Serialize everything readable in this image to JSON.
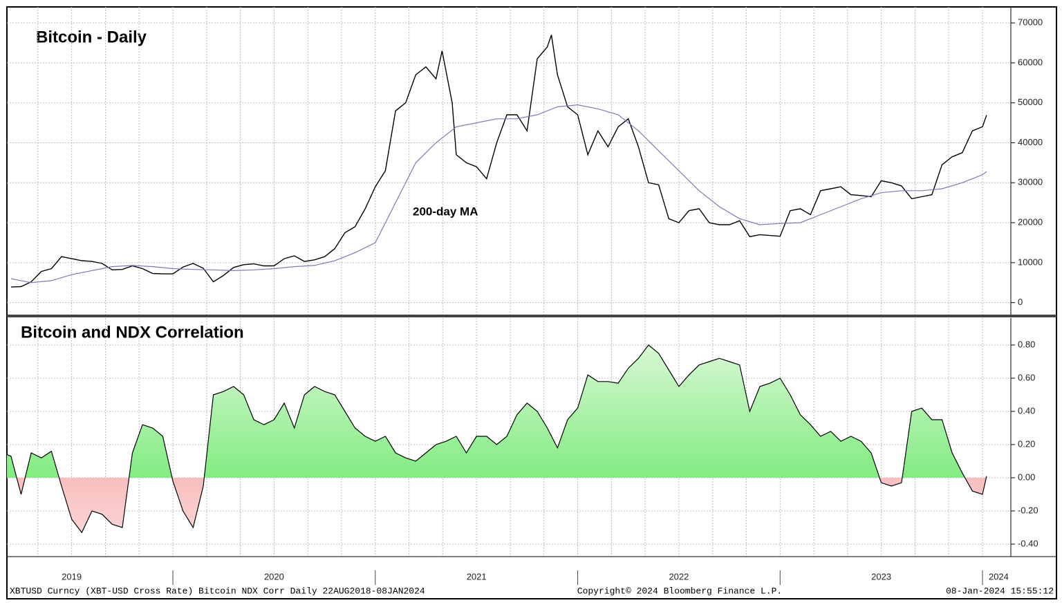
{
  "chart_data": [
    {
      "type": "line",
      "title": "Bitcoin - Daily",
      "annotation": "200-day MA",
      "xlim": [
        2019.18,
        2024.14
      ],
      "ylim": [
        -3000,
        74000
      ],
      "yticks": [
        0,
        10000,
        20000,
        30000,
        40000,
        50000,
        60000,
        70000
      ],
      "grid": true,
      "x_gridlines": [
        2019.333,
        2019.5,
        2019.667,
        2019.833,
        2020,
        2020.167,
        2020.333,
        2020.5,
        2020.667,
        2020.833,
        2021,
        2021.167,
        2021.333,
        2021.5,
        2021.667,
        2021.833,
        2022,
        2022.167,
        2022.333,
        2022.5,
        2022.667,
        2022.833,
        2023,
        2023.167,
        2023.333,
        2023.5,
        2023.667,
        2023.833,
        2024
      ],
      "series": [
        {
          "color": "#000000",
          "x": [
            2019.2,
            2019.25,
            2019.3,
            2019.35,
            2019.4,
            2019.45,
            2019.5,
            2019.55,
            2019.6,
            2019.65,
            2019.7,
            2019.75,
            2019.8,
            2019.85,
            2019.9,
            2019.95,
            2020.0,
            2020.05,
            2020.1,
            2020.15,
            2020.2,
            2020.25,
            2020.3,
            2020.35,
            2020.4,
            2020.45,
            2020.5,
            2020.55,
            2020.6,
            2020.65,
            2020.7,
            2020.75,
            2020.8,
            2020.85,
            2020.9,
            2020.95,
            2021.0,
            2021.05,
            2021.1,
            2021.15,
            2021.2,
            2021.25,
            2021.3,
            2021.33,
            2021.38,
            2021.4,
            2021.45,
            2021.5,
            2021.55,
            2021.6,
            2021.65,
            2021.7,
            2021.75,
            2021.8,
            2021.85,
            2021.87,
            2021.9,
            2021.95,
            2022.0,
            2022.05,
            2022.1,
            2022.15,
            2022.2,
            2022.25,
            2022.3,
            2022.35,
            2022.4,
            2022.45,
            2022.5,
            2022.55,
            2022.6,
            2022.65,
            2022.7,
            2022.75,
            2022.8,
            2022.85,
            2022.9,
            2022.95,
            2023.0,
            2023.05,
            2023.1,
            2023.15,
            2023.2,
            2023.25,
            2023.3,
            2023.35,
            2023.4,
            2023.45,
            2023.5,
            2023.55,
            2023.6,
            2023.65,
            2023.7,
            2023.75,
            2023.8,
            2023.85,
            2023.9,
            2023.95,
            2024.0,
            2024.02
          ],
          "values": [
            3900,
            4000,
            5200,
            7800,
            8500,
            11500,
            11000,
            10500,
            10300,
            9800,
            8200,
            8300,
            9200,
            8500,
            7300,
            7200,
            7200,
            8900,
            9800,
            8600,
            5200,
            6800,
            8800,
            9500,
            9700,
            9200,
            9200,
            11000,
            11700,
            10300,
            10700,
            11500,
            13500,
            17500,
            19000,
            23500,
            29000,
            33000,
            48000,
            50000,
            57000,
            59000,
            56000,
            63000,
            50000,
            37000,
            35000,
            34000,
            31000,
            40000,
            47000,
            47000,
            43000,
            61000,
            64000,
            67000,
            57000,
            49000,
            47000,
            37000,
            43000,
            39000,
            44000,
            46000,
            39000,
            30000,
            29500,
            21000,
            20000,
            23000,
            23500,
            20000,
            19500,
            19500,
            20500,
            16500,
            17000,
            16800,
            16600,
            23000,
            23500,
            22000,
            28000,
            28500,
            29000,
            27000,
            26800,
            26500,
            30500,
            30000,
            29200,
            26000,
            26500,
            27000,
            34500,
            36500,
            37500,
            43000,
            44000,
            46900
          ]
        },
        {
          "color": "#7b7bb5",
          "x": [
            2019.2,
            2019.3,
            2019.4,
            2019.5,
            2019.6,
            2019.7,
            2019.8,
            2019.9,
            2020.0,
            2020.1,
            2020.2,
            2020.3,
            2020.4,
            2020.5,
            2020.6,
            2020.7,
            2020.8,
            2020.9,
            2021.0,
            2021.1,
            2021.2,
            2021.3,
            2021.4,
            2021.5,
            2021.6,
            2021.7,
            2021.8,
            2021.9,
            2022.0,
            2022.1,
            2022.2,
            2022.3,
            2022.4,
            2022.5,
            2022.6,
            2022.7,
            2022.8,
            2022.9,
            2023.0,
            2023.1,
            2023.2,
            2023.3,
            2023.4,
            2023.5,
            2023.6,
            2023.7,
            2023.8,
            2023.9,
            2024.0,
            2024.02
          ],
          "values": [
            6000,
            5000,
            5500,
            7000,
            8000,
            9000,
            9300,
            9000,
            8500,
            8300,
            8200,
            8000,
            8200,
            8500,
            9000,
            9300,
            10500,
            12500,
            15000,
            25000,
            35000,
            40000,
            44000,
            45000,
            46000,
            46000,
            47000,
            49000,
            49500,
            48500,
            47000,
            43000,
            38000,
            33000,
            28000,
            24000,
            21000,
            19500,
            19800,
            20000,
            22000,
            24000,
            26000,
            27500,
            28000,
            28000,
            28500,
            30000,
            32000,
            32800
          ]
        }
      ]
    },
    {
      "type": "area",
      "title": "Bitcoin and NDX Correlation",
      "xlim": [
        2019.18,
        2024.14
      ],
      "ylim": [
        -0.475,
        0.9625
      ],
      "yticks": [
        {
          "value": -0.4,
          "label": "-0.40"
        },
        {
          "value": -0.2,
          "label": "-0.20"
        },
        {
          "value": 0,
          "label": "0.00"
        },
        {
          "value": 0.2,
          "label": "0.20"
        },
        {
          "value": 0.4,
          "label": "0.40"
        },
        {
          "value": 0.6,
          "label": "0.60"
        },
        {
          "value": 0.8,
          "label": "0.80"
        }
      ],
      "grid": true,
      "xticks": [
        {
          "value": 2019.5,
          "label": "2019"
        },
        {
          "value": 2020.5,
          "label": "2020"
        },
        {
          "value": 2021.5,
          "label": "2021"
        },
        {
          "value": 2022.5,
          "label": "2022"
        },
        {
          "value": 2023.5,
          "label": "2023"
        },
        {
          "value": 2024.08,
          "label": "2024"
        }
      ],
      "year_separators": [
        2020,
        2021,
        2022,
        2023,
        2024
      ],
      "positive_color": "#5ee65e",
      "negative_color": "#f08a8a",
      "line_color": "#000000",
      "x": [
        2019.18,
        2019.2,
        2019.25,
        2019.3,
        2019.35,
        2019.4,
        2019.45,
        2019.5,
        2019.55,
        2019.6,
        2019.65,
        2019.7,
        2019.75,
        2019.8,
        2019.85,
        2019.9,
        2019.95,
        2020.0,
        2020.05,
        2020.1,
        2020.15,
        2020.2,
        2020.25,
        2020.3,
        2020.35,
        2020.4,
        2020.45,
        2020.5,
        2020.55,
        2020.6,
        2020.65,
        2020.7,
        2020.75,
        2020.8,
        2020.85,
        2020.9,
        2020.95,
        2021.0,
        2021.05,
        2021.1,
        2021.15,
        2021.2,
        2021.25,
        2021.3,
        2021.35,
        2021.4,
        2021.45,
        2021.5,
        2021.55,
        2021.6,
        2021.65,
        2021.7,
        2021.75,
        2021.8,
        2021.85,
        2021.9,
        2021.95,
        2022.0,
        2022.05,
        2022.1,
        2022.15,
        2022.2,
        2022.25,
        2022.3,
        2022.35,
        2022.4,
        2022.45,
        2022.5,
        2022.55,
        2022.6,
        2022.65,
        2022.7,
        2022.75,
        2022.8,
        2022.85,
        2022.9,
        2022.95,
        2023.0,
        2023.05,
        2023.1,
        2023.15,
        2023.2,
        2023.25,
        2023.3,
        2023.35,
        2023.4,
        2023.45,
        2023.5,
        2023.55,
        2023.6,
        2023.65,
        2023.7,
        2023.75,
        2023.8,
        2023.85,
        2023.9,
        2023.95,
        2024.0,
        2024.02
      ],
      "values": [
        0.14,
        0.13,
        -0.1,
        0.15,
        0.12,
        0.16,
        -0.05,
        -0.25,
        -0.33,
        -0.2,
        -0.22,
        -0.28,
        -0.3,
        0.15,
        0.32,
        0.3,
        0.25,
        -0.02,
        -0.2,
        -0.3,
        -0.05,
        0.5,
        0.52,
        0.55,
        0.5,
        0.35,
        0.32,
        0.35,
        0.45,
        0.3,
        0.5,
        0.55,
        0.52,
        0.5,
        0.4,
        0.3,
        0.25,
        0.22,
        0.25,
        0.15,
        0.12,
        0.1,
        0.15,
        0.2,
        0.22,
        0.25,
        0.15,
        0.25,
        0.25,
        0.2,
        0.25,
        0.38,
        0.45,
        0.4,
        0.3,
        0.18,
        0.35,
        0.42,
        0.62,
        0.58,
        0.58,
        0.57,
        0.66,
        0.72,
        0.8,
        0.75,
        0.65,
        0.55,
        0.62,
        0.68,
        0.7,
        0.72,
        0.7,
        0.68,
        0.4,
        0.55,
        0.57,
        0.6,
        0.5,
        0.38,
        0.32,
        0.25,
        0.28,
        0.22,
        0.25,
        0.22,
        0.15,
        -0.03,
        -0.05,
        -0.03,
        0.4,
        0.42,
        0.35,
        0.35,
        0.15,
        0.03,
        -0.08,
        -0.1,
        0.01
      ]
    }
  ],
  "footer": {
    "left": "XBTUSD Curncy (XBT-USD Cross Rate) Bitcoin NDX Corr  Daily 22AUG2018-08JAN2024",
    "center": "Copyright© 2024 Bloomberg Finance L.P.",
    "right": "08-Jan-2024 15:55:12"
  }
}
